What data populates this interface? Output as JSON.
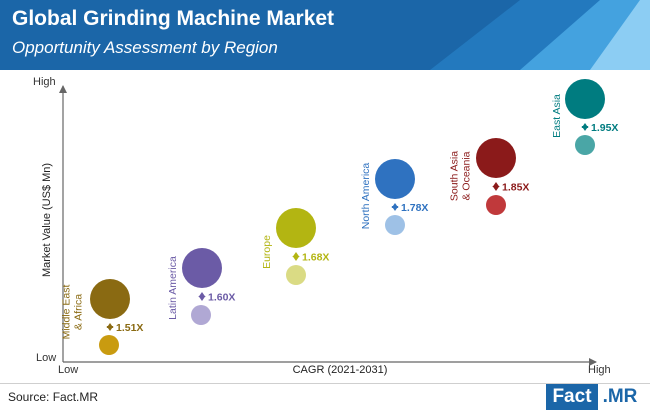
{
  "header": {
    "title": "Global Grinding Machine Market",
    "subtitle": "Opportunity Assessment by Region"
  },
  "chart_data": {
    "type": "scatter",
    "xlabel": "CAGR (2021-2031)",
    "ylabel": "Market Value (US$ Mn)",
    "x_low_label": "Low",
    "x_high_label": "High",
    "y_low_label": "Low",
    "y_high_label": "High",
    "points": [
      {
        "region": "Middle East & Africa",
        "label_lines": [
          "Middle East",
          "& Africa"
        ],
        "multiplier": "1.51X",
        "color": "#8a6a12",
        "color_small": "#c99b10"
      },
      {
        "region": "Latin America",
        "label_lines": [
          "Latin America"
        ],
        "multiplier": "1.60X",
        "color": "#6b5ba6",
        "color_small": "#b0a8d4"
      },
      {
        "region": "Europe",
        "label_lines": [
          "Europe"
        ],
        "multiplier": "1.68X",
        "color": "#b3b512",
        "color_small": "#dadb84"
      },
      {
        "region": "North America",
        "label_lines": [
          "North America"
        ],
        "multiplier": "1.78X",
        "color": "#2f72c0",
        "color_small": "#9ec1e6"
      },
      {
        "region": "South Asia & Oceania",
        "label_lines": [
          "South Asia",
          "& Oceania"
        ],
        "multiplier": "1.85X",
        "color": "#8b1a1a",
        "color_small": "#c0393b"
      },
      {
        "region": "East Asia",
        "label_lines": [
          "East Asia"
        ],
        "multiplier": "1.95X",
        "color": "#007c80",
        "color_small": "#4aa6a6"
      }
    ]
  },
  "footer": {
    "source": "Source: Fact.MR",
    "logo_fact": "Fact",
    "logo_mr": ".MR"
  }
}
